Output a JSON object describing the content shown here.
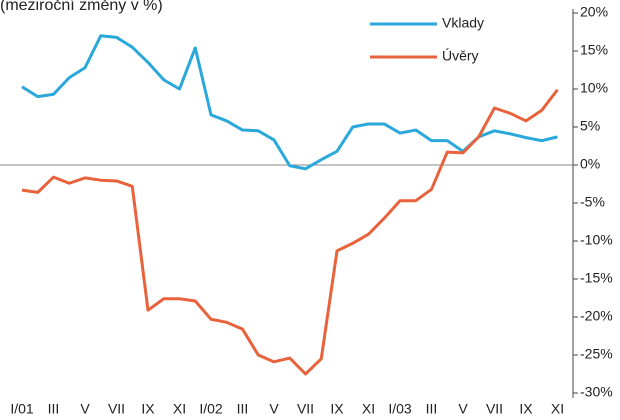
{
  "chart_data": {
    "type": "line",
    "title": "(meziroční změny v %)",
    "categories": [
      "I/01",
      null,
      "III",
      null,
      "V",
      null,
      "VII",
      null,
      "IX",
      null,
      "XI",
      null,
      "I/02",
      null,
      "III",
      null,
      "V",
      null,
      "VII",
      null,
      "IX",
      null,
      "XI",
      null,
      "I/03",
      null,
      "III",
      null,
      "V",
      null,
      "VII",
      null,
      "IX",
      null,
      "XI"
    ],
    "series": [
      {
        "name": "Vklady",
        "color": "#2aa7db",
        "values": [
          10.3,
          9.0,
          9.3,
          11.5,
          12.8,
          17.0,
          16.8,
          15.5,
          13.5,
          11.2,
          10.0,
          15.4,
          6.6,
          5.8,
          4.6,
          4.5,
          3.3,
          -0.1,
          -0.5,
          0.7,
          1.8,
          5.0,
          5.4,
          5.4,
          4.2,
          4.6,
          3.2,
          3.2,
          1.8,
          3.7,
          4.5,
          4.1,
          3.6,
          3.2,
          3.7
        ]
      },
      {
        "name": "Úvěry",
        "color": "#e8623c",
        "values": [
          -3.3,
          -3.6,
          -1.6,
          -2.4,
          -1.7,
          -2.0,
          -2.1,
          -2.8,
          -19.1,
          -17.6,
          -17.6,
          -17.9,
          -20.3,
          -20.7,
          -21.6,
          -25.0,
          -25.9,
          -25.4,
          -27.5,
          -25.5,
          -11.3,
          -10.3,
          -9.1,
          -7.0,
          -4.7,
          -4.7,
          -3.2,
          1.7,
          1.6,
          3.7,
          7.5,
          6.8,
          5.8,
          7.2,
          9.9
        ]
      }
    ],
    "ylim": [
      -30,
      20
    ],
    "yticks": [
      {
        "value": 20,
        "label": "20%"
      },
      {
        "value": 15,
        "label": "15%"
      },
      {
        "value": 10,
        "label": "10%"
      },
      {
        "value": 5,
        "label": "5%"
      },
      {
        "value": 0,
        "label": "0%"
      },
      {
        "value": -5,
        "label": "-5%"
      },
      {
        "value": -10,
        "label": "-10%"
      },
      {
        "value": -15,
        "label": "-15%"
      },
      {
        "value": -20,
        "label": "-20%"
      },
      {
        "value": -25,
        "label": "-25%"
      },
      {
        "value": -30,
        "label": "-30%"
      }
    ],
    "grid": false,
    "legend": "top-right"
  }
}
